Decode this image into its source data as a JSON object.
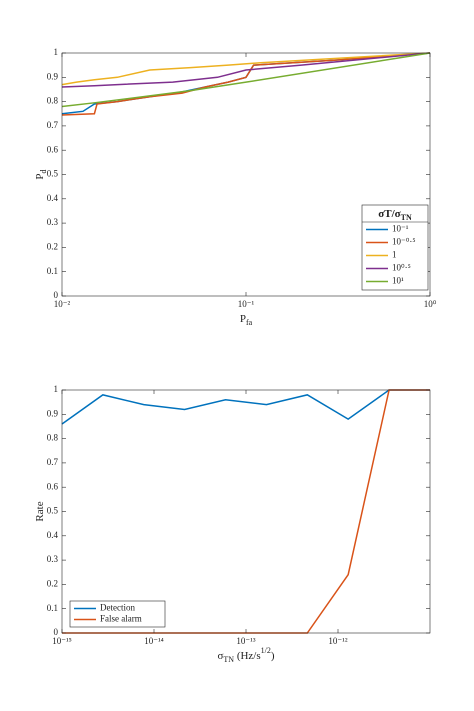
{
  "chart_data": [
    {
      "type": "line",
      "xscale": "log",
      "grid": false,
      "legend": "lower right",
      "xlabel": [
        {
          "text": "P"
        },
        {
          "sub": "fa"
        }
      ],
      "ylabel": [
        {
          "text": "P"
        },
        {
          "sub": "d"
        }
      ],
      "legend_title": [
        {
          "text": "σT/σ"
        },
        {
          "sub": "TN"
        }
      ],
      "xlim": [
        0.01,
        1
      ],
      "ylim": [
        0,
        1
      ],
      "xticks": [
        {
          "value": 0.01,
          "label": "10⁻²"
        },
        {
          "value": 0.1,
          "label": "10⁻¹"
        },
        {
          "value": 1,
          "label": "10⁰"
        }
      ],
      "yticks": [
        0,
        0.1,
        0.2,
        0.3,
        0.4,
        0.5,
        0.6,
        0.7,
        0.8,
        0.9,
        1
      ],
      "series": [
        {
          "name": "10⁻¹",
          "color": "#0072BD",
          "x": [
            0.01,
            0.013,
            0.015,
            0.02,
            0.03,
            0.045,
            0.06,
            0.08,
            0.1,
            0.11,
            0.3,
            1
          ],
          "values": [
            0.75,
            0.76,
            0.79,
            0.8,
            0.82,
            0.84,
            0.86,
            0.88,
            0.9,
            0.95,
            0.97,
            1
          ]
        },
        {
          "name": "10⁻⁰·⁵",
          "color": "#D95319",
          "x": [
            0.01,
            0.015,
            0.0155,
            0.02,
            0.03,
            0.045,
            0.06,
            0.08,
            0.1,
            0.11,
            0.3,
            1
          ],
          "values": [
            0.745,
            0.75,
            0.79,
            0.8,
            0.82,
            0.835,
            0.86,
            0.88,
            0.9,
            0.95,
            0.97,
            1
          ]
        },
        {
          "name": "1",
          "color": "#EDB120",
          "x": [
            0.01,
            0.012,
            0.015,
            0.02,
            0.03,
            0.05,
            0.08,
            0.12,
            1
          ],
          "values": [
            0.87,
            0.88,
            0.89,
            0.9,
            0.93,
            0.94,
            0.95,
            0.96,
            1
          ]
        },
        {
          "name": "10⁰·⁵",
          "color": "#7E2F8E",
          "x": [
            0.01,
            0.015,
            0.02,
            0.04,
            0.07,
            0.1,
            0.2,
            1
          ],
          "values": [
            0.86,
            0.865,
            0.87,
            0.88,
            0.9,
            0.93,
            0.95,
            1
          ]
        },
        {
          "name": "10¹",
          "color": "#77AC30",
          "x": [
            0.01,
            0.015,
            0.05,
            0.1,
            1
          ],
          "values": [
            0.78,
            0.795,
            0.845,
            0.88,
            1
          ]
        }
      ]
    },
    {
      "type": "line",
      "xscale": "log",
      "grid": false,
      "legend": "lower left",
      "xlabel": [
        {
          "text": "σ"
        },
        {
          "sub": "TN"
        },
        {
          "text": " (Hz/s"
        },
        {
          "sup": "1/2"
        },
        {
          "text": ")"
        }
      ],
      "ylabel": [
        {
          "text": "Rate"
        }
      ],
      "xlim": [
        1e-15,
        1e-11
      ],
      "ylim": [
        0,
        1
      ],
      "xticks": [
        {
          "value": 1e-15,
          "label": "10⁻¹⁵"
        },
        {
          "value": 1e-14,
          "label": "10⁻¹⁴"
        },
        {
          "value": 1e-13,
          "label": "10⁻¹³"
        },
        {
          "value": 1e-12,
          "label": "10⁻¹²"
        }
      ],
      "yticks": [
        0,
        0.1,
        0.2,
        0.3,
        0.4,
        0.5,
        0.6,
        0.7,
        0.8,
        0.9,
        1
      ],
      "x": [
        1e-15,
        2.78e-15,
        7.74e-15,
        2.15e-14,
        5.99e-14,
        1.67e-13,
        4.64e-13,
        1.29e-12,
        3.59e-12,
        1e-11
      ],
      "series": [
        {
          "name": "Detection",
          "color": "#0072BD",
          "values": [
            0.86,
            0.98,
            0.94,
            0.92,
            0.96,
            0.94,
            0.98,
            0.88,
            1,
            1
          ]
        },
        {
          "name": "False alarm",
          "color": "#D95319",
          "values": [
            0,
            0,
            0,
            0,
            0,
            0,
            0,
            0.24,
            1,
            1
          ]
        }
      ]
    }
  ]
}
